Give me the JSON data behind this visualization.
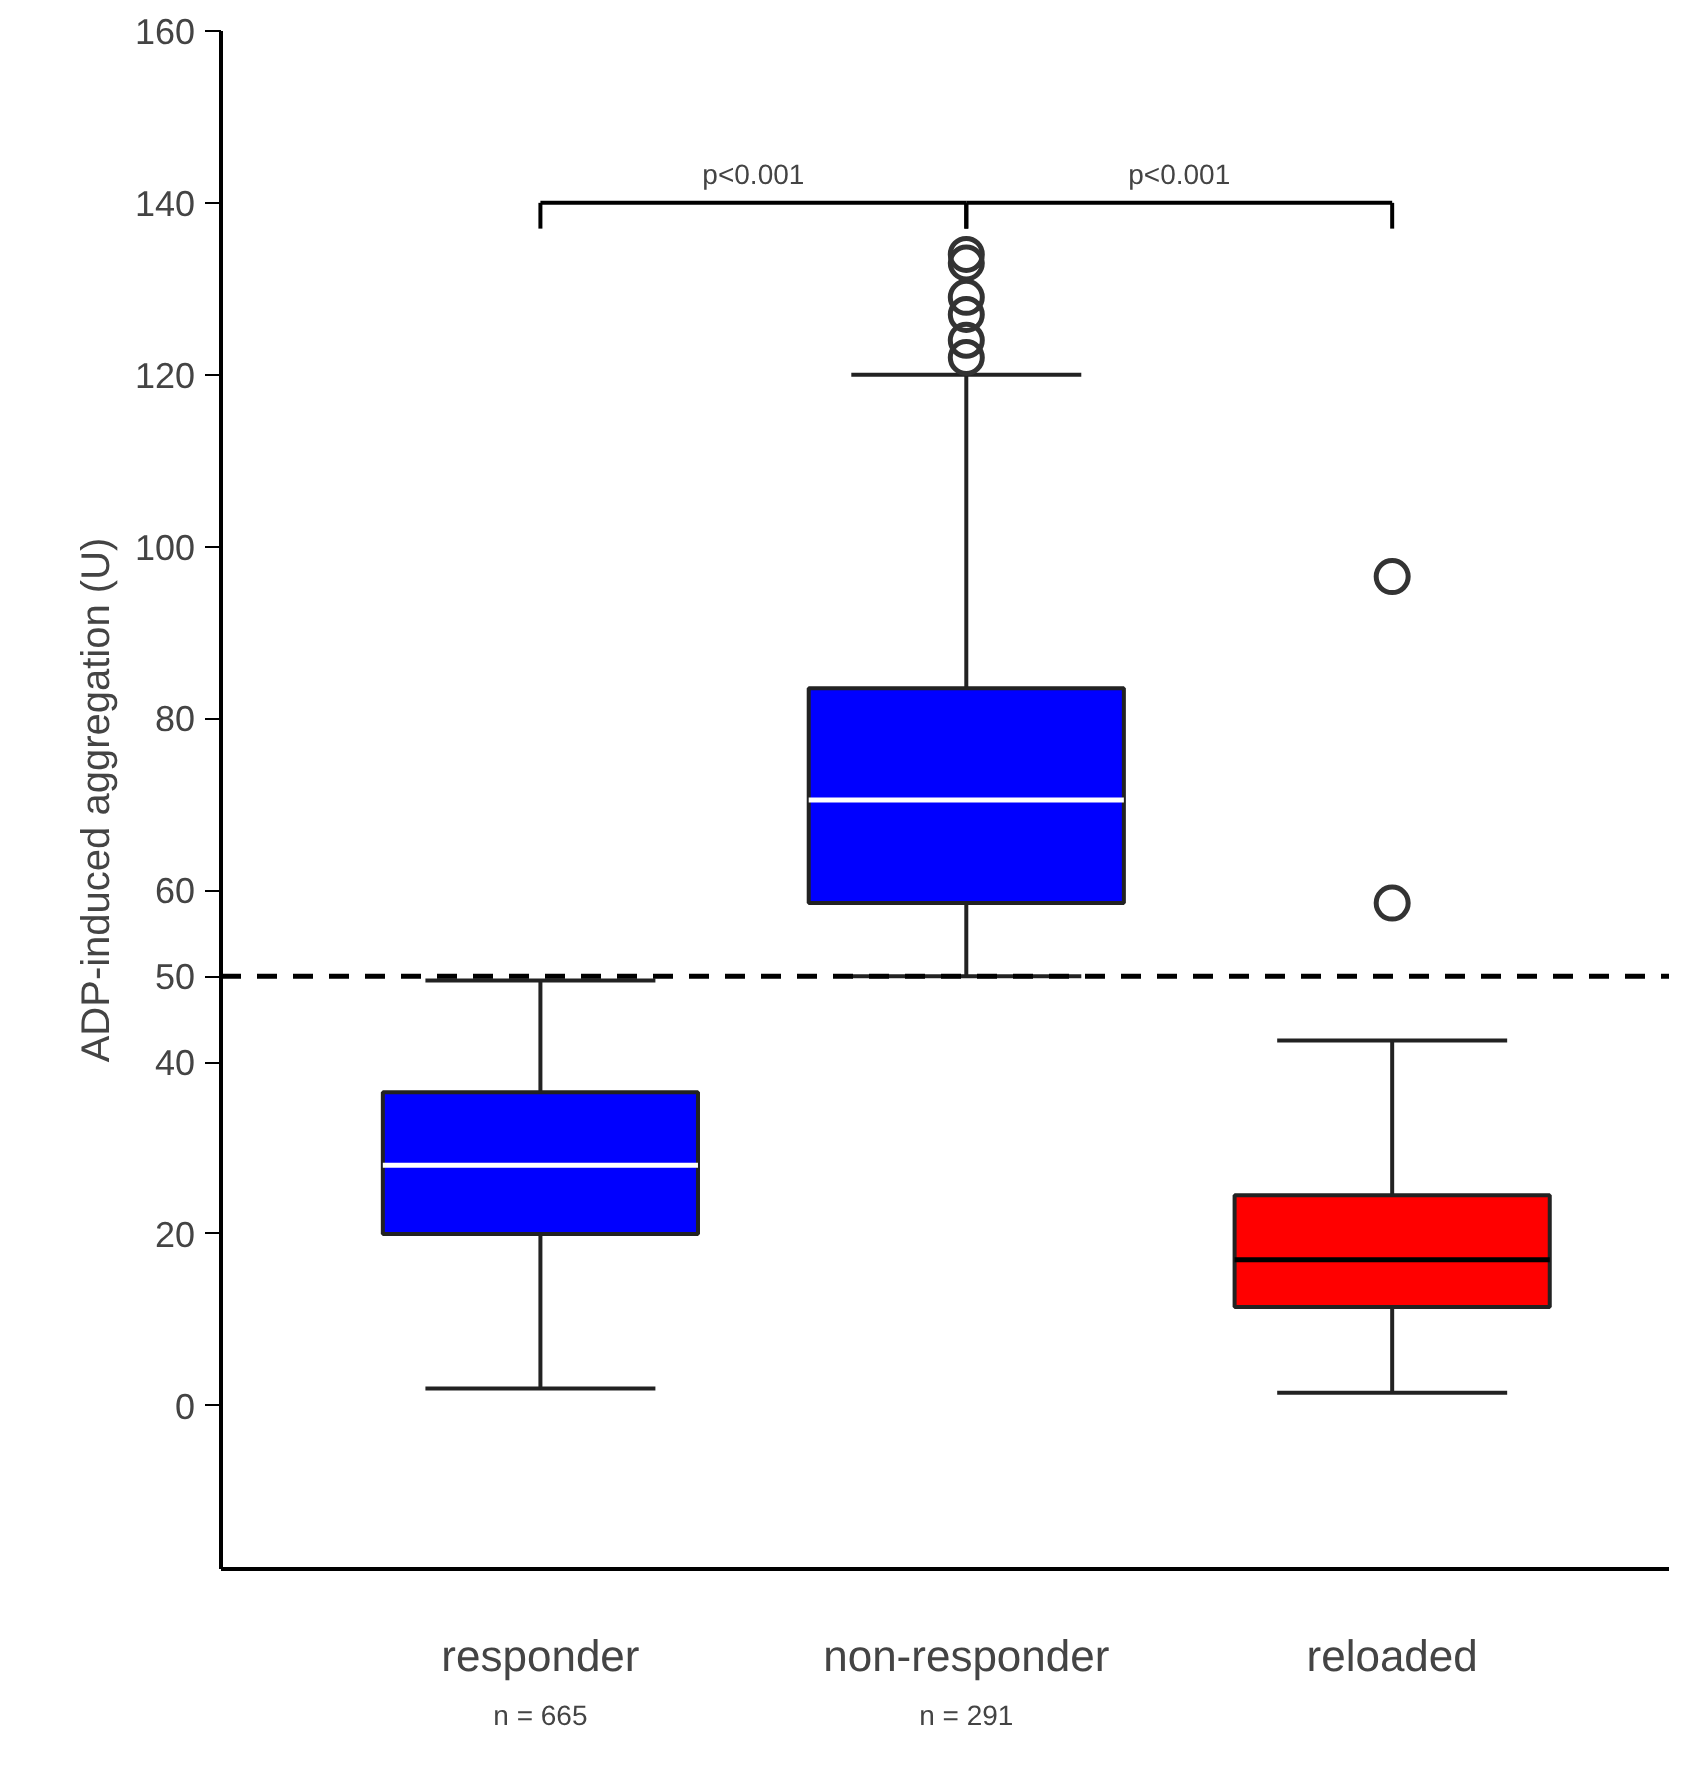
{
  "chart_data": {
    "type": "box",
    "ylabel": "ADP-induced aggregation (U)",
    "categories": [
      "responder",
      "non-responder",
      "reloaded"
    ],
    "colors": [
      "#0000ff",
      "#0000ff",
      "#ff0000"
    ],
    "boxes": [
      {
        "low": 2,
        "q1": 20,
        "median": 28,
        "q3": 36.5,
        "high": 49.5
      },
      {
        "low": 50,
        "q1": 58.5,
        "median": 70.5,
        "q3": 83.5,
        "high": 120,
        "outliers": [
          122,
          124,
          127,
          129,
          133,
          134
        ]
      },
      {
        "low": 1.5,
        "q1": 11.5,
        "median": 17,
        "q3": 24.5,
        "high": 42.5,
        "outliers": [
          58.5,
          96.5
        ]
      }
    ],
    "ylim": [
      -19,
      160
    ],
    "yticks": [
      0,
      20,
      40,
      60,
      80,
      100,
      120,
      140,
      160
    ],
    "ref_lines": [
      {
        "axis": "y",
        "value": 50,
        "label": "50",
        "color": "#000000",
        "line_style": "dashed"
      }
    ],
    "annotations": [
      "p<0.001",
      "p<0.001",
      "n = 665",
      "n = 291"
    ],
    "grid": false
  }
}
